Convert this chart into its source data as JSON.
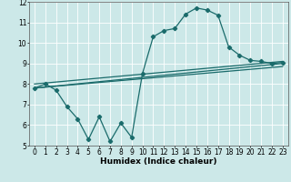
{
  "xlabel": "Humidex (Indice chaleur)",
  "ylabel": "",
  "xlim": [
    -0.5,
    23.5
  ],
  "ylim": [
    5,
    12
  ],
  "xticks": [
    0,
    1,
    2,
    3,
    4,
    5,
    6,
    7,
    8,
    9,
    10,
    11,
    12,
    13,
    14,
    15,
    16,
    17,
    18,
    19,
    20,
    21,
    22,
    23
  ],
  "yticks": [
    5,
    6,
    7,
    8,
    9,
    10,
    11,
    12
  ],
  "bg_color": "#cce8e8",
  "line_color": "#1a6b6b",
  "grid_color": "#ffffff",
  "line1_x": [
    0,
    1,
    2,
    3,
    4,
    5,
    6,
    7,
    8,
    9,
    10,
    11,
    12,
    13,
    14,
    15,
    16,
    17,
    18,
    19,
    20,
    21,
    22,
    23
  ],
  "line1_y": [
    7.8,
    8.0,
    7.7,
    6.9,
    6.3,
    5.3,
    6.4,
    5.2,
    6.1,
    5.4,
    8.5,
    10.3,
    10.6,
    10.7,
    11.4,
    11.7,
    11.6,
    11.35,
    9.8,
    9.4,
    9.15,
    9.1,
    9.0,
    9.05
  ],
  "line2_x": [
    0,
    23
  ],
  "line2_y": [
    7.8,
    9.0
  ],
  "line3_x": [
    0,
    23
  ],
  "line3_y": [
    8.0,
    9.1
  ],
  "line4_x": [
    0,
    23
  ],
  "line4_y": [
    7.8,
    8.85
  ],
  "marker": "D",
  "markersize": 2.2,
  "linewidth": 0.9,
  "tick_fontsize": 5.5,
  "xlabel_fontsize": 6.5
}
